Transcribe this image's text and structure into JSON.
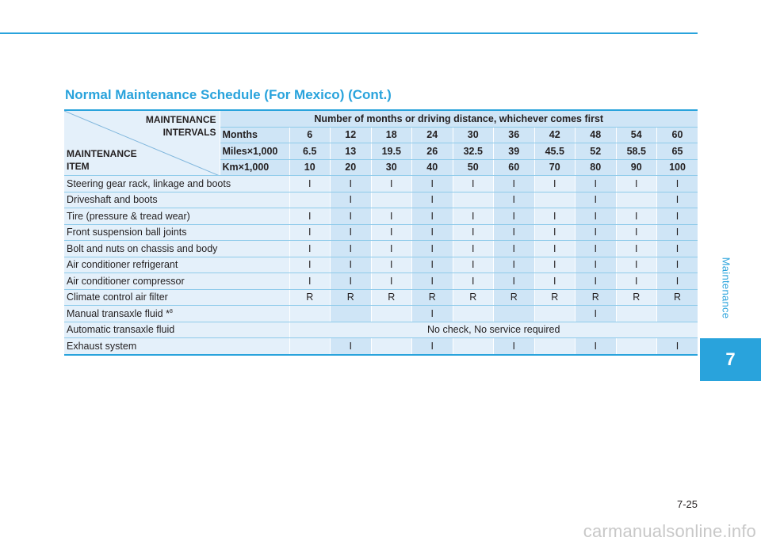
{
  "section_heading": "Normal Maintenance Schedule (For Mexico) (Cont.)",
  "side_label": "Maintenance",
  "chapter_number": "7",
  "page_number": "7-25",
  "watermark": "carmanualsonline.info",
  "table": {
    "corner_top": [
      "MAINTENANCE",
      "INTERVALS"
    ],
    "corner_bottom": [
      "MAINTENANCE",
      "ITEM"
    ],
    "interval_title": "Number of months or driving distance, whichever comes first",
    "interval_rows": [
      {
        "label": "Months",
        "values": [
          "6",
          "12",
          "18",
          "24",
          "30",
          "36",
          "42",
          "48",
          "54",
          "60"
        ]
      },
      {
        "label": "Miles×1,000",
        "values": [
          "6.5",
          "13",
          "19.5",
          "26",
          "32.5",
          "39",
          "45.5",
          "52",
          "58.5",
          "65"
        ]
      },
      {
        "label": "Km×1,000",
        "values": [
          "10",
          "20",
          "30",
          "40",
          "50",
          "60",
          "70",
          "80",
          "90",
          "100"
        ]
      }
    ],
    "items": [
      {
        "name": "Steering gear rack, linkage and boots",
        "note": "",
        "cells": [
          "I",
          "I",
          "I",
          "I",
          "I",
          "I",
          "I",
          "I",
          "I",
          "I"
        ]
      },
      {
        "name": "Driveshaft and boots",
        "note": "",
        "cells": [
          "",
          "I",
          "",
          "I",
          "",
          "I",
          "",
          "I",
          "",
          "I"
        ]
      },
      {
        "name": "Tire (pressure & tread wear)",
        "note": "",
        "cells": [
          "I",
          "I",
          "I",
          "I",
          "I",
          "I",
          "I",
          "I",
          "I",
          "I"
        ]
      },
      {
        "name": "Front suspension ball joints",
        "note": "",
        "cells": [
          "I",
          "I",
          "I",
          "I",
          "I",
          "I",
          "I",
          "I",
          "I",
          "I"
        ]
      },
      {
        "name": "Bolt and nuts on chassis and body",
        "note": "",
        "cells": [
          "I",
          "I",
          "I",
          "I",
          "I",
          "I",
          "I",
          "I",
          "I",
          "I"
        ]
      },
      {
        "name": "Air conditioner refrigerant",
        "note": "",
        "cells": [
          "I",
          "I",
          "I",
          "I",
          "I",
          "I",
          "I",
          "I",
          "I",
          "I"
        ]
      },
      {
        "name": "Air conditioner compressor",
        "note": "",
        "cells": [
          "I",
          "I",
          "I",
          "I",
          "I",
          "I",
          "I",
          "I",
          "I",
          "I"
        ]
      },
      {
        "name": "Climate control air filter",
        "note": "",
        "cells": [
          "R",
          "R",
          "R",
          "R",
          "R",
          "R",
          "R",
          "R",
          "R",
          "R"
        ]
      },
      {
        "name": "Manual transaxle fluid *",
        "note": "8",
        "cells": [
          "",
          "",
          "",
          "I",
          "",
          "",
          "",
          "I",
          "",
          ""
        ]
      },
      {
        "name": "Automatic transaxle fluid",
        "note": "",
        "span_text": "No check, No service required"
      },
      {
        "name": "Exhaust system",
        "note": "",
        "cells": [
          "",
          "I",
          "",
          "I",
          "",
          "I",
          "",
          "I",
          "",
          "I"
        ]
      }
    ]
  }
}
